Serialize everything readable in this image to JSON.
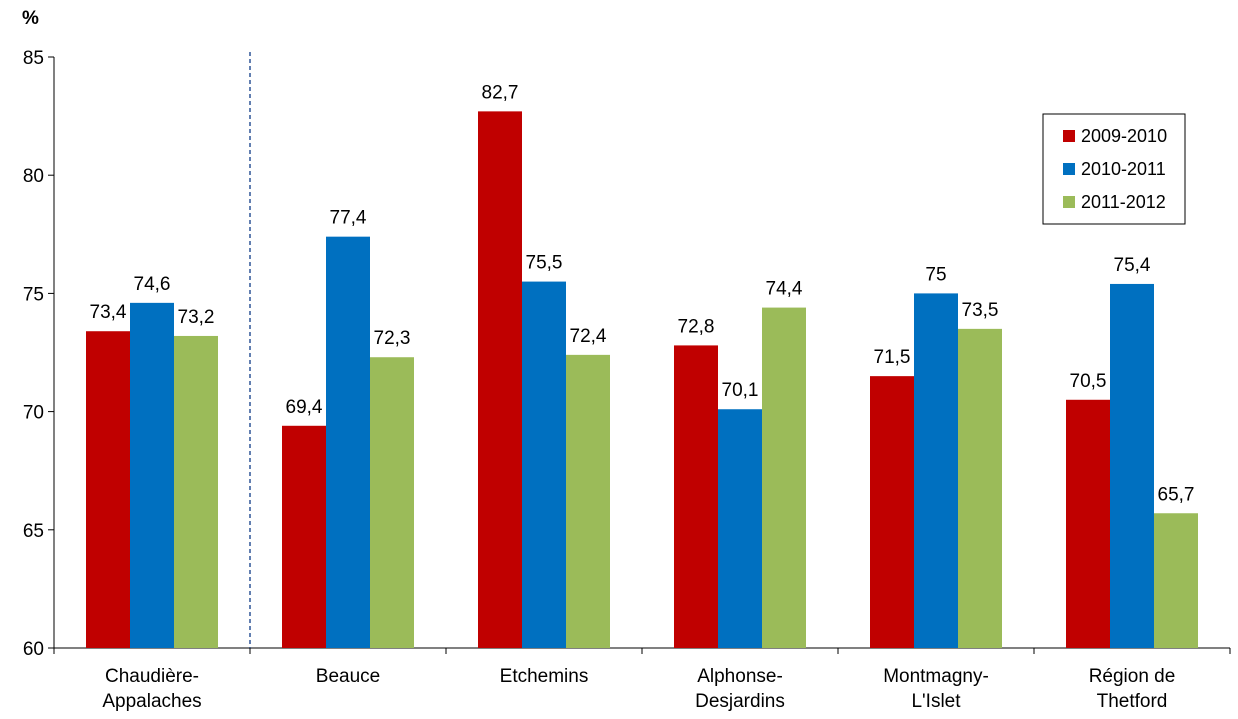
{
  "chart_data": {
    "type": "bar",
    "unit_label": "%",
    "categories": [
      [
        "Chaudière-",
        "Appalaches"
      ],
      [
        "Beauce"
      ],
      [
        "Etchemins"
      ],
      [
        "Alphonse-",
        "Desjardins"
      ],
      [
        "Montmagny-",
        "L'Islet"
      ],
      [
        "Région de",
        "Thetford"
      ]
    ],
    "series": [
      {
        "name": "2009-2010",
        "color": "#c00000",
        "values": [
          73.4,
          69.4,
          82.7,
          72.8,
          71.5,
          70.5
        ],
        "labels": [
          "73,4",
          "69,4",
          "82,7",
          "72,8",
          "71,5",
          "70,5"
        ]
      },
      {
        "name": "2010-2011",
        "color": "#0070c0",
        "values": [
          74.6,
          77.4,
          75.5,
          70.1,
          75.0,
          75.4
        ],
        "labels": [
          "74,6",
          "77,4",
          "75,5",
          "70,1",
          "75",
          "75,4"
        ]
      },
      {
        "name": "2011-2012",
        "color": "#9bbb59",
        "values": [
          73.2,
          72.3,
          72.4,
          74.4,
          73.5,
          65.7
        ],
        "labels": [
          "73,2",
          "72,3",
          "72,4",
          "74,4",
          "73,5",
          "65,7"
        ]
      }
    ],
    "ylim": [
      60,
      85
    ],
    "yticks": [
      60,
      65,
      70,
      75,
      80,
      85
    ],
    "separator_after_category": 0,
    "legend_position": "top-right",
    "grid": false
  }
}
